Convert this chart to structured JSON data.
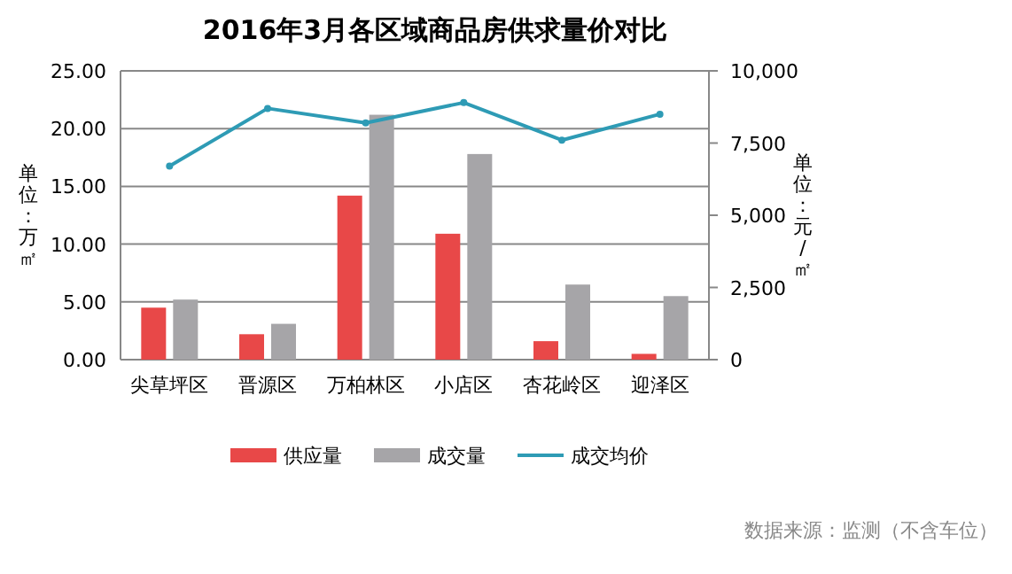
{
  "chart_data": {
    "type": "bar",
    "title": "2016年3月各区域商品房供求量价对比",
    "ylabel": "单位：万㎡",
    "y2label": "单位：元/㎡",
    "categories": [
      "尖草坪区",
      "晋源区",
      "万柏林区",
      "小店区",
      "杏花岭区",
      "迎泽区"
    ],
    "series": [
      {
        "name": "供应量",
        "color": "#e84848",
        "values": [
          4.5,
          2.2,
          14.2,
          10.9,
          1.6,
          0.5
        ]
      },
      {
        "name": "成交量",
        "color": "#a6a5a8",
        "values": [
          5.2,
          3.1,
          21.2,
          17.8,
          6.5,
          5.5
        ]
      },
      {
        "name": "成交均价",
        "type": "line",
        "axis": "y2",
        "color": "#2e9bb5",
        "marker": "circle",
        "values": [
          6700,
          8700,
          8200,
          8900,
          7600,
          8500
        ]
      }
    ],
    "ylim": [
      0,
      25
    ],
    "yticks": [
      {
        "value": 0,
        "label": "0.00"
      },
      {
        "value": 5,
        "label": "5.00"
      },
      {
        "value": 10,
        "label": "10.00"
      },
      {
        "value": 15,
        "label": "15.00"
      },
      {
        "value": 20,
        "label": "20.00"
      },
      {
        "value": 25,
        "label": "25.00"
      }
    ],
    "y2lim": [
      0,
      10000
    ],
    "y2ticks": [
      0,
      {
        "value": 2500,
        "label": "2,500"
      },
      {
        "value": 5000,
        "label": "5,000"
      },
      {
        "value": 7500,
        "label": "7,500"
      },
      {
        "value": 10000,
        "label": "10,000"
      }
    ],
    "grid": "y",
    "legend": "bottom",
    "annotations": [
      "数据来源：监测（不含车位）"
    ]
  }
}
